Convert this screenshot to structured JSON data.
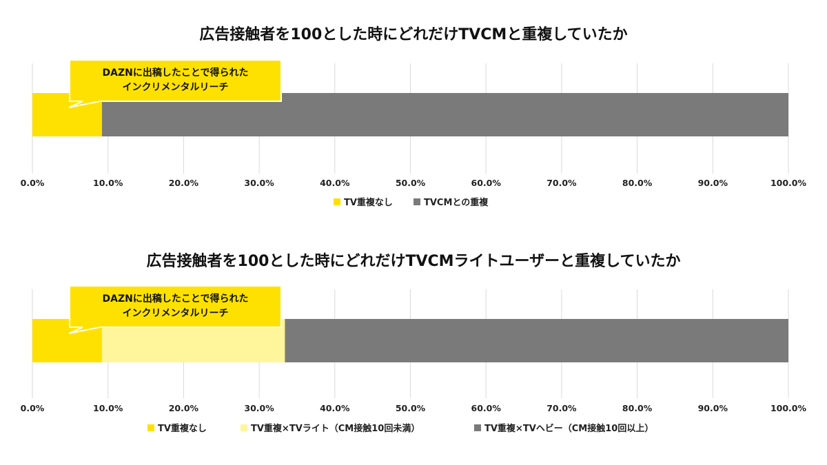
{
  "charts": [
    {
      "title": "広告接触者を100とした時にどれだけTVCMと重複していたか",
      "callout": [
        "DAZNに出稿したことで得られた",
        "インクリメンタルリーチ"
      ]
    },
    {
      "title": "広告接触者を100とした時にどれだけTVCMライトユーザーと重複していたか",
      "callout": [
        "DAZNに出稿したことで得られた",
        "インクリメンタルリーチ"
      ]
    }
  ],
  "colors": {
    "no_overlap": "#FFE100",
    "light_overlap": "#FFF59A",
    "overlap": "#7A7A7A",
    "grid": "#D9D9D9",
    "callout_fill": "#FFE100",
    "callout_border": "#FFFFFF"
  },
  "chart_data": [
    {
      "type": "bar",
      "orientation": "horizontal-stacked-100",
      "title": "広告接触者を100とした時にどれだけTVCMと重複していたか",
      "xlim": [
        0,
        100
      ],
      "x_ticks": [
        "0.0%",
        "10.0%",
        "20.0%",
        "30.0%",
        "40.0%",
        "50.0%",
        "60.0%",
        "70.0%",
        "80.0%",
        "90.0%",
        "100.0%"
      ],
      "grid": true,
      "legend_position": "bottom",
      "series": [
        {
          "name": "TV重複なし",
          "values": [
            9.2
          ],
          "color": "#FFE100"
        },
        {
          "name": "TVCMとの重複",
          "values": [
            90.8
          ],
          "color": "#7A7A7A"
        }
      ]
    },
    {
      "type": "bar",
      "orientation": "horizontal-stacked-100",
      "title": "広告接触者を100とした時にどれだけTVCMライトユーザーと重複していたか",
      "xlim": [
        0,
        100
      ],
      "x_ticks": [
        "0.0%",
        "10.0%",
        "20.0%",
        "30.0%",
        "40.0%",
        "50.0%",
        "60.0%",
        "70.0%",
        "80.0%",
        "90.0%",
        "100.0%"
      ],
      "grid": true,
      "legend_position": "bottom",
      "series": [
        {
          "name": "TV重複なし",
          "values": [
            9.2
          ],
          "color": "#FFE100"
        },
        {
          "name": "TV重複×TVライト（CM接触10回未満）",
          "values": [
            24.2
          ],
          "color": "#FFF59A"
        },
        {
          "name": "TV重複×TVヘビー（CM接触10回以上）",
          "values": [
            66.6
          ],
          "color": "#7A7A7A"
        }
      ]
    }
  ]
}
